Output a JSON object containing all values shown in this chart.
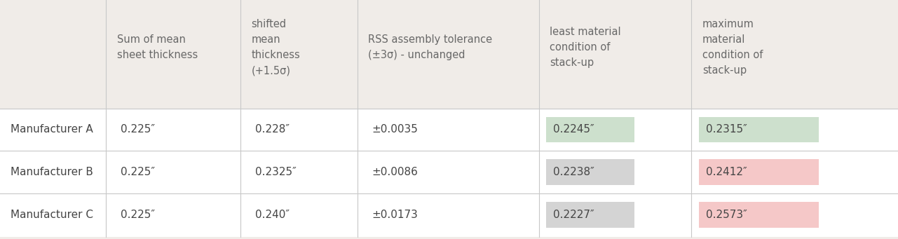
{
  "background_color": "#f0ece8",
  "header_row_bg": "#f0ece8",
  "data_row_bg": "#ffffff",
  "col_headers": [
    "Sum of mean\nsheet thickness",
    "shifted\nmean\nthickness\n(+1.5σ)",
    "RSS assembly tolerance\n(±3σ) - unchanged",
    "least material\ncondition of\nstack-up",
    "maximum\nmaterial\ncondition of\nstack-up"
  ],
  "row_labels": [
    "Manufacturer A",
    "Manufacturer B",
    "Manufacturer C"
  ],
  "cell_data": [
    [
      "0.225″",
      "0.228″",
      "±0.0035",
      "0.2245″",
      "0.2315″"
    ],
    [
      "0.225″",
      "0.2325″",
      "±0.0086",
      "0.2238″",
      "0.2412″"
    ],
    [
      "0.225″",
      "0.240″",
      "±0.0173",
      "0.2227″",
      "0.2573″"
    ]
  ],
  "cell_highlight_colors": [
    [
      "none",
      "none",
      "none",
      "#cde0cd",
      "#cde0cd"
    ],
    [
      "none",
      "none",
      "none",
      "#d4d4d4",
      "#f5c8c8"
    ],
    [
      "none",
      "none",
      "none",
      "#d4d4d4",
      "#f5c8c8"
    ]
  ],
  "text_color": "#454545",
  "header_text_color": "#686868",
  "divider_color": "#c8c8c8",
  "font_size": 11,
  "header_font_size": 10.5,
  "col_starts": [
    0.0,
    0.118,
    0.268,
    0.398,
    0.6,
    0.77
  ],
  "col_ends": [
    0.118,
    0.268,
    0.398,
    0.6,
    0.77,
    1.0
  ],
  "row_tops": [
    1.0,
    0.545,
    0.37,
    0.19
  ],
  "row_bottoms": [
    0.545,
    0.37,
    0.19,
    0.01
  ]
}
